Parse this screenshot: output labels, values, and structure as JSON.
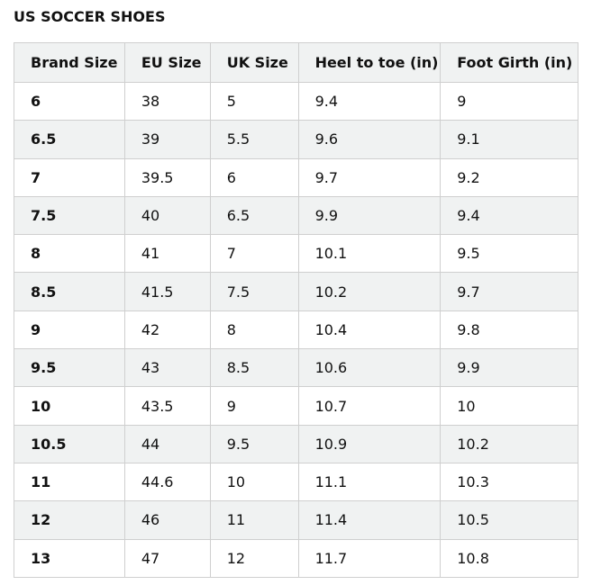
{
  "header": {
    "title": "US SOCCER SHOES"
  },
  "table": {
    "columns": [
      "Brand Size",
      "EU Size",
      "UK Size",
      "Heel to toe (in)",
      "Foot Girth (in)"
    ],
    "rows": [
      [
        "6",
        "38",
        "5",
        "9.4",
        "9"
      ],
      [
        "6.5",
        "39",
        "5.5",
        "9.6",
        "9.1"
      ],
      [
        "7",
        "39.5",
        "6",
        "9.7",
        "9.2"
      ],
      [
        "7.5",
        "40",
        "6.5",
        "9.9",
        "9.4"
      ],
      [
        "8",
        "41",
        "7",
        "10.1",
        "9.5"
      ],
      [
        "8.5",
        "41.5",
        "7.5",
        "10.2",
        "9.7"
      ],
      [
        "9",
        "42",
        "8",
        "10.4",
        "9.8"
      ],
      [
        "9.5",
        "43",
        "8.5",
        "10.6",
        "9.9"
      ],
      [
        "10",
        "43.5",
        "9",
        "10.7",
        "10"
      ],
      [
        "10.5",
        "44",
        "9.5",
        "10.9",
        "10.2"
      ],
      [
        "11",
        "44.6",
        "10",
        "11.1",
        "10.3"
      ],
      [
        "12",
        "46",
        "11",
        "11.4",
        "10.5"
      ],
      [
        "13",
        "47",
        "12",
        "11.7",
        "10.8"
      ]
    ]
  }
}
